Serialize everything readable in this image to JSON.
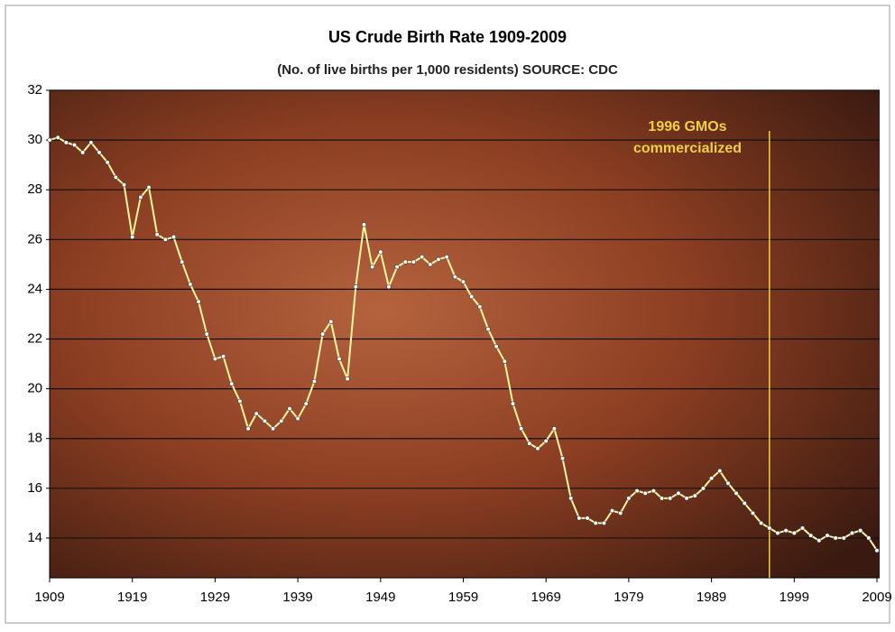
{
  "chart_data": {
    "type": "line",
    "title": "US Crude Birth Rate 1909-2009",
    "subtitle": "(No. of live births per 1,000 residents) SOURCE: CDC",
    "x": [
      1909,
      1910,
      1911,
      1912,
      1913,
      1914,
      1915,
      1916,
      1917,
      1918,
      1919,
      1920,
      1921,
      1922,
      1923,
      1924,
      1925,
      1926,
      1927,
      1928,
      1929,
      1930,
      1931,
      1932,
      1933,
      1934,
      1935,
      1936,
      1937,
      1938,
      1939,
      1940,
      1941,
      1942,
      1943,
      1944,
      1945,
      1946,
      1947,
      1948,
      1949,
      1950,
      1951,
      1952,
      1953,
      1954,
      1955,
      1956,
      1957,
      1958,
      1959,
      1960,
      1961,
      1962,
      1963,
      1964,
      1965,
      1966,
      1967,
      1968,
      1969,
      1970,
      1971,
      1972,
      1973,
      1974,
      1975,
      1976,
      1977,
      1978,
      1979,
      1980,
      1981,
      1982,
      1983,
      1984,
      1985,
      1986,
      1987,
      1988,
      1989,
      1990,
      1991,
      1992,
      1993,
      1994,
      1995,
      1996,
      1997,
      1998,
      1999,
      2000,
      2001,
      2002,
      2003,
      2004,
      2005,
      2006,
      2007,
      2008,
      2009
    ],
    "series": [
      {
        "color": "#fff8a0",
        "values": [
          30.0,
          30.1,
          29.9,
          29.8,
          29.5,
          29.9,
          29.5,
          29.1,
          28.5,
          28.2,
          26.1,
          27.7,
          28.1,
          26.2,
          26.0,
          26.1,
          25.1,
          24.2,
          23.5,
          22.2,
          21.2,
          21.3,
          20.2,
          19.5,
          18.4,
          19.0,
          18.7,
          18.4,
          18.7,
          19.2,
          18.8,
          19.4,
          20.3,
          22.2,
          22.7,
          21.2,
          20.4,
          24.1,
          26.6,
          24.9,
          25.5,
          24.1,
          24.9,
          25.1,
          25.1,
          25.3,
          25.0,
          25.2,
          25.3,
          24.5,
          24.3,
          23.7,
          23.3,
          22.4,
          21.7,
          21.1,
          19.4,
          18.4,
          17.8,
          17.6,
          17.9,
          18.4,
          17.2,
          15.6,
          14.8,
          14.8,
          14.6,
          14.6,
          15.1,
          15.0,
          15.6,
          15.9,
          15.8,
          15.9,
          15.6,
          15.6,
          15.8,
          15.6,
          15.7,
          16.0,
          16.4,
          16.7,
          16.2,
          15.8,
          15.4,
          15.0,
          14.6,
          14.4,
          14.2,
          14.3,
          14.2,
          14.4,
          14.1,
          13.9,
          14.1,
          14.0,
          14.0,
          14.2,
          14.3,
          14.0,
          13.5
        ]
      }
    ],
    "xlim": [
      1909,
      2009
    ],
    "xticks": [
      1909,
      1919,
      1929,
      1939,
      1949,
      1959,
      1969,
      1979,
      1989,
      1999,
      2009
    ],
    "ylim": [
      12.4,
      32
    ],
    "yticks": [
      14,
      16,
      18,
      20,
      22,
      24,
      26,
      28,
      30,
      32
    ],
    "grid": true,
    "annotation": {
      "lines": [
        "1996 GMOs",
        "commercialized"
      ],
      "x": 1996,
      "color": "#f0d040"
    }
  }
}
